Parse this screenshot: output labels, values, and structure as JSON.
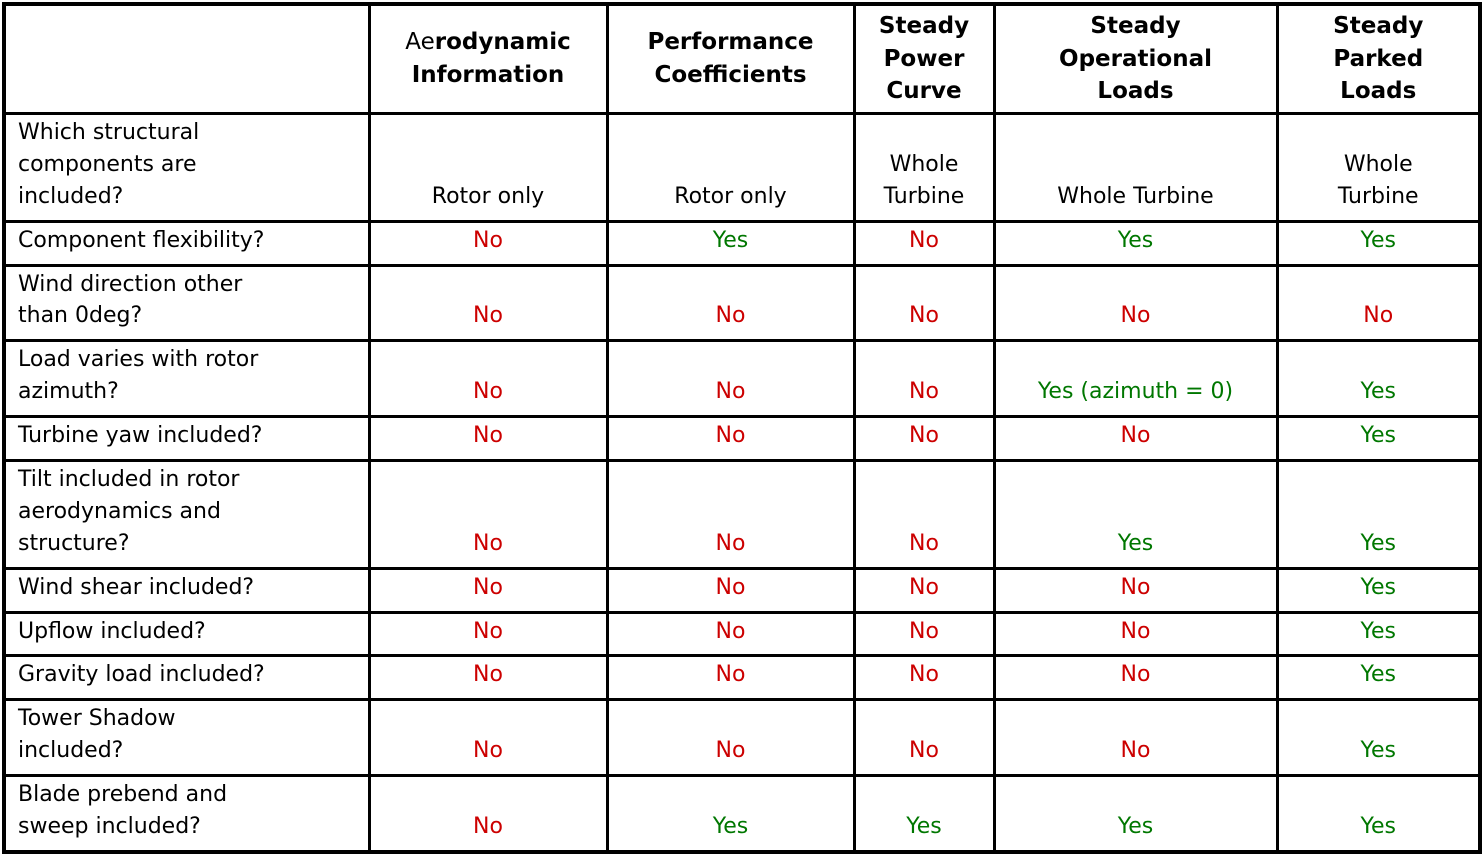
{
  "colors": {
    "yes_green": "#007700",
    "no_red": "#CC0000",
    "border": "#000000",
    "background": "#FFFFFF",
    "text": "#000000"
  },
  "table": {
    "corner_label": "",
    "columns": [
      {
        "label_regular": "Ae",
        "label_bold": "rodynamic\nInformation"
      },
      {
        "label_regular": "",
        "label_bold": "Performance\nCoefficients"
      },
      {
        "label_regular": "",
        "label_bold": "Steady\nPower\nCurve"
      },
      {
        "label_regular": "",
        "label_bold": "Steady\nOperational\nLoads"
      },
      {
        "label_regular": "",
        "label_bold": "Steady\nParked\nLoads"
      }
    ],
    "rows": [
      {
        "label": "Which structural\ncomponents are\nincluded?",
        "values": [
          "Rotor only",
          "Rotor only",
          "Whole\nTurbine",
          "Whole Turbine",
          "Whole\nTurbine"
        ]
      },
      {
        "label": "Component flexibility?",
        "values": [
          "No",
          "Yes",
          "No",
          "Yes",
          "Yes"
        ]
      },
      {
        "label": "Wind direction other\nthan 0deg?",
        "values": [
          "No",
          "No",
          "No",
          "No",
          "No"
        ]
      },
      {
        "label": "Load varies with rotor\nazimuth?",
        "values": [
          "No",
          "No",
          "No",
          "Yes (azimuth = 0)",
          "Yes"
        ]
      },
      {
        "label": "Turbine yaw included?",
        "values": [
          "No",
          "No",
          "No",
          "No",
          "Yes"
        ]
      },
      {
        "label": "Tilt included in rotor\naerodynamics and\nstructure?",
        "values": [
          "No",
          "No",
          "No",
          "Yes",
          "Yes"
        ]
      },
      {
        "label": "Wind shear included?",
        "values": [
          "No",
          "No",
          "No",
          "No",
          "Yes"
        ]
      },
      {
        "label": "Upflow included?",
        "values": [
          "No",
          "No",
          "No",
          "No",
          "Yes"
        ]
      },
      {
        "label": "Gravity load included?",
        "values": [
          "No",
          "No",
          "No",
          "No",
          "Yes"
        ]
      },
      {
        "label": "Tower Shadow\nincluded?",
        "values": [
          "No",
          "No",
          "No",
          "No",
          "Yes"
        ]
      },
      {
        "label": "Blade prebend and\nsweep included?",
        "values": [
          "No",
          "Yes",
          "Yes",
          "Yes",
          "Yes"
        ]
      }
    ]
  }
}
